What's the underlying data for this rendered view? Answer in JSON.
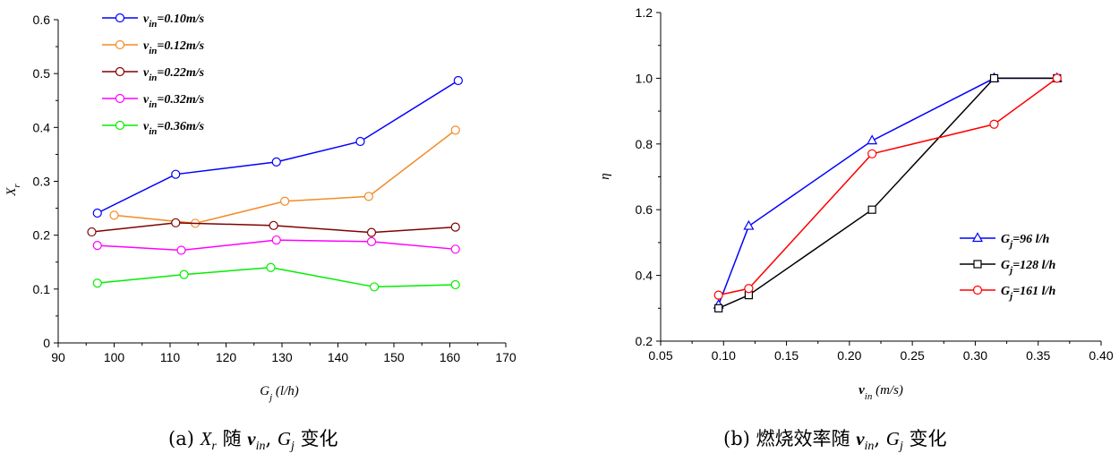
{
  "chart_data": [
    {
      "type": "line",
      "title": "",
      "xlabel": "G",
      "xlabel_sub": "j",
      "xlabel_unit": "(l/h)",
      "ylabel": "X",
      "ylabel_sub": "r",
      "xlim": [
        90,
        170
      ],
      "ylim": [
        0.0,
        0.6
      ],
      "xticks": [
        90,
        100,
        110,
        120,
        130,
        140,
        150,
        160,
        170
      ],
      "yticks": [
        0.0,
        0.1,
        0.2,
        0.3,
        0.4,
        0.5,
        0.6
      ],
      "grid": false,
      "legend_position": "top-left",
      "series": [
        {
          "name_base": "v",
          "name_sub": "in",
          "name_rest": "=0.10m/s",
          "color": "#0000ff",
          "marker": "circle",
          "x": [
            97,
            111,
            129,
            144,
            161.5
          ],
          "y": [
            0.241,
            0.313,
            0.336,
            0.374,
            0.487
          ]
        },
        {
          "name_base": "v",
          "name_sub": "in",
          "name_rest": "=0.12m/s",
          "color": "#f28c28",
          "marker": "circle",
          "x": [
            100,
            114.5,
            130.5,
            145.5,
            161
          ],
          "y": [
            0.237,
            0.222,
            0.263,
            0.272,
            0.395
          ]
        },
        {
          "name_base": "v",
          "name_sub": "in",
          "name_rest": "=0.22m/s",
          "color": "#800000",
          "marker": "circle",
          "x": [
            96,
            111,
            128.5,
            146,
            161
          ],
          "y": [
            0.206,
            0.223,
            0.218,
            0.205,
            0.215
          ]
        },
        {
          "name_base": "v",
          "name_sub": "in",
          "name_rest": "=0.32m/s",
          "color": "#ff00ff",
          "marker": "circle",
          "x": [
            97,
            112,
            129,
            146,
            161
          ],
          "y": [
            0.181,
            0.172,
            0.191,
            0.188,
            0.174
          ]
        },
        {
          "name_base": "v",
          "name_sub": "in",
          "name_rest": "=0.36m/s",
          "color": "#00ee00",
          "marker": "circle",
          "x": [
            97,
            112.5,
            128,
            146.5,
            161
          ],
          "y": [
            0.111,
            0.127,
            0.14,
            0.104,
            0.108
          ]
        }
      ]
    },
    {
      "type": "line",
      "title": "",
      "xlabel": "v",
      "xlabel_sub": "in",
      "xlabel_unit": "(m/s)",
      "ylabel": "η",
      "xlim": [
        0.05,
        0.4
      ],
      "ylim": [
        0.2,
        1.2
      ],
      "xticks": [
        "0.05",
        "0.10",
        "0.15",
        "0.20",
        "0.25",
        "0.30",
        "0.35",
        "0.40"
      ],
      "yticks": [
        "0.2",
        "0.4",
        "0.6",
        "0.8",
        "1.0",
        "1.2"
      ],
      "grid": false,
      "legend_position": "right-center",
      "series": [
        {
          "name_base": "G",
          "name_sub": "j",
          "name_rest": "=96 l/h",
          "color": "#0000ff",
          "marker": "triangle",
          "x": [
            0.096,
            0.12,
            0.218,
            0.315,
            0.365
          ],
          "y": [
            0.31,
            0.55,
            0.81,
            1.0,
            1.0
          ]
        },
        {
          "name_base": "G",
          "name_sub": "j",
          "name_rest": "=128 l/h",
          "color": "#000000",
          "marker": "square",
          "x": [
            0.096,
            0.12,
            0.218,
            0.315,
            0.365
          ],
          "y": [
            0.3,
            0.34,
            0.6,
            1.0,
            1.0
          ]
        },
        {
          "name_base": "G",
          "name_sub": "j",
          "name_rest": "=161 l/h",
          "color": "#ff0000",
          "marker": "circle",
          "x": [
            0.096,
            0.12,
            0.218,
            0.315,
            0.365
          ],
          "y": [
            0.34,
            0.36,
            0.77,
            0.86,
            1.0
          ]
        }
      ]
    }
  ],
  "captions": {
    "a": {
      "prefix": "(a) ",
      "var1": "X",
      "var1_sub": "r",
      "mid": " 随 ",
      "var2": "v",
      "var2_sub": "in",
      "comma": ", ",
      "var3": "G",
      "var3_sub": "j",
      "suffix": " 变化"
    },
    "b": {
      "prefix": "(b)  燃烧效率随 ",
      "var2": "v",
      "var2_sub": "in",
      "comma": ", ",
      "var3": "G",
      "var3_sub": "j",
      "suffix": " 变化"
    }
  }
}
